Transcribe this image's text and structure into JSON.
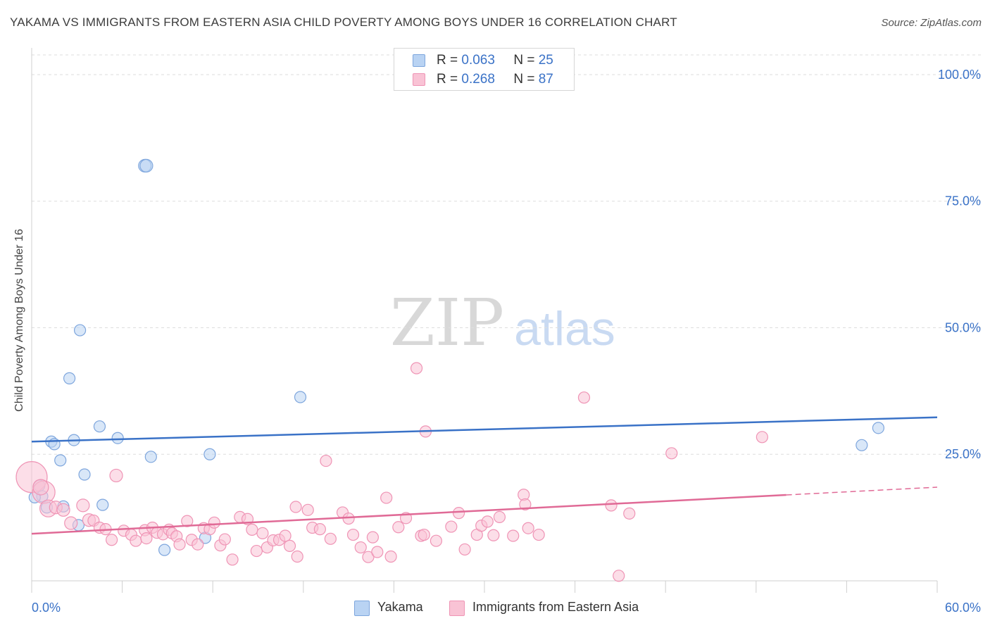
{
  "title": "YAKAMA VS IMMIGRANTS FROM EASTERN ASIA CHILD POVERTY AMONG BOYS UNDER 16 CORRELATION CHART",
  "source": "Source: ZipAtlas.com",
  "watermark": {
    "zip": "ZIP",
    "atlas": "atlas"
  },
  "colors": {
    "blue": "#3a72c7",
    "blue_fill": "#b9d3f3",
    "blue_stroke": "#7ea6dd",
    "pink": "#e06a96",
    "pink_fill": "#f9c3d5",
    "pink_stroke": "#ef94b5",
    "grid": "#dedede",
    "tick_text": "#3a72c7"
  },
  "legend": {
    "rows": [
      {
        "r_label": "R =",
        "r_value": "0.063",
        "n_label": "N =",
        "n_value": "25"
      },
      {
        "r_label": "R =",
        "r_value": "0.268",
        "n_label": "N =",
        "n_value": "87"
      }
    ]
  },
  "bottom_legend": {
    "yakama": "Yakama",
    "immigrants": "Immigrants from Eastern Asia"
  },
  "chart_data": {
    "type": "scatter",
    "title": "YAKAMA VS IMMIGRANTS FROM EASTERN ASIA CHILD POVERTY AMONG BOYS UNDER 16 CORRELATION CHART",
    "xlabel": "",
    "ylabel": "Child Poverty Among Boys Under 16",
    "xlim": [
      0,
      60
    ],
    "ylim": [
      0,
      105
    ],
    "x_tick_labels": [
      {
        "value": 0,
        "label": "0.0%"
      },
      {
        "value": 60,
        "label": "60.0%"
      }
    ],
    "y_tick_labels": [
      {
        "value": 25,
        "label": "25.0%"
      },
      {
        "value": 50,
        "label": "50.0%"
      },
      {
        "value": 75,
        "label": "75.0%"
      },
      {
        "value": 100,
        "label": "100.0%"
      }
    ],
    "series": [
      {
        "name": "Yakama",
        "color": "blue",
        "r": 0.063,
        "n": 25,
        "trend": {
          "x0": 0,
          "y0": 27.5,
          "x1": 60,
          "y1": 32.3
        },
        "points": [
          [
            7.5,
            82.0
          ],
          [
            7.6,
            82.0
          ],
          [
            3.2,
            49.5
          ],
          [
            2.5,
            40.0
          ],
          [
            17.8,
            36.3
          ],
          [
            4.5,
            30.5
          ],
          [
            5.7,
            28.2
          ],
          [
            2.8,
            27.8
          ],
          [
            1.3,
            27.5
          ],
          [
            1.5,
            27.0
          ],
          [
            11.8,
            25.0
          ],
          [
            7.9,
            24.5
          ],
          [
            1.9,
            23.8
          ],
          [
            3.5,
            21.0
          ],
          [
            0.5,
            18.8
          ],
          [
            0.7,
            16.7
          ],
          [
            0.2,
            16.5
          ],
          [
            2.1,
            14.7
          ],
          [
            4.7,
            15.0
          ],
          [
            1.0,
            14.5
          ],
          [
            3.1,
            11.0
          ],
          [
            11.5,
            8.5
          ],
          [
            8.8,
            6.1
          ],
          [
            55.0,
            26.8
          ],
          [
            56.1,
            30.2
          ]
        ],
        "sizes": [
          9,
          9,
          8,
          8,
          8,
          8,
          8,
          8,
          8,
          8,
          8,
          8,
          8,
          8,
          8,
          8,
          8,
          8,
          8,
          8,
          8,
          8,
          8,
          8,
          8
        ]
      },
      {
        "name": "Immigrants from Eastern Asia",
        "color": "pink",
        "r": 0.268,
        "n": 87,
        "trend": {
          "x0": 0,
          "y0": 9.3,
          "x1": 60,
          "y1": 18.5,
          "solid_until_x": 50
        },
        "points": [
          [
            0.0,
            20.5
          ],
          [
            0.8,
            17.5
          ],
          [
            0.6,
            18.5
          ],
          [
            1.1,
            14.3
          ],
          [
            1.6,
            14.5
          ],
          [
            2.1,
            14.0
          ],
          [
            2.6,
            11.4
          ],
          [
            3.4,
            14.9
          ],
          [
            3.8,
            12.0
          ],
          [
            4.1,
            11.9
          ],
          [
            4.5,
            10.5
          ],
          [
            4.9,
            10.2
          ],
          [
            5.3,
            8.1
          ],
          [
            5.6,
            20.8
          ],
          [
            6.1,
            9.9
          ],
          [
            6.6,
            9.1
          ],
          [
            6.9,
            7.9
          ],
          [
            7.5,
            10.0
          ],
          [
            7.6,
            8.4
          ],
          [
            8.0,
            10.5
          ],
          [
            8.3,
            9.5
          ],
          [
            8.7,
            9.2
          ],
          [
            9.1,
            10.1
          ],
          [
            9.3,
            9.4
          ],
          [
            9.6,
            8.8
          ],
          [
            9.8,
            7.2
          ],
          [
            10.3,
            11.8
          ],
          [
            10.6,
            8.1
          ],
          [
            11.0,
            7.2
          ],
          [
            11.4,
            10.4
          ],
          [
            11.8,
            10.2
          ],
          [
            12.1,
            11.5
          ],
          [
            12.5,
            7.0
          ],
          [
            12.8,
            8.2
          ],
          [
            13.3,
            4.2
          ],
          [
            13.8,
            12.6
          ],
          [
            14.3,
            12.2
          ],
          [
            14.6,
            10.1
          ],
          [
            14.9,
            5.9
          ],
          [
            15.3,
            9.4
          ],
          [
            15.6,
            6.6
          ],
          [
            16.0,
            8.0
          ],
          [
            16.4,
            8.1
          ],
          [
            16.8,
            8.9
          ],
          [
            17.1,
            6.9
          ],
          [
            17.5,
            14.6
          ],
          [
            17.6,
            4.8
          ],
          [
            18.3,
            14.0
          ],
          [
            18.6,
            10.5
          ],
          [
            19.1,
            10.2
          ],
          [
            19.5,
            23.7
          ],
          [
            19.8,
            8.3
          ],
          [
            20.6,
            13.5
          ],
          [
            21.0,
            12.3
          ],
          [
            21.3,
            9.1
          ],
          [
            21.8,
            6.6
          ],
          [
            22.3,
            4.7
          ],
          [
            22.6,
            8.6
          ],
          [
            22.9,
            5.7
          ],
          [
            23.5,
            16.4
          ],
          [
            23.8,
            4.8
          ],
          [
            24.3,
            10.6
          ],
          [
            24.8,
            12.4
          ],
          [
            25.8,
            8.9
          ],
          [
            26.0,
            9.1
          ],
          [
            26.8,
            7.9
          ],
          [
            25.5,
            42.0
          ],
          [
            26.1,
            29.5
          ],
          [
            27.8,
            10.7
          ],
          [
            28.3,
            13.4
          ],
          [
            28.7,
            6.2
          ],
          [
            29.5,
            9.1
          ],
          [
            29.8,
            10.9
          ],
          [
            30.2,
            11.7
          ],
          [
            30.6,
            9.0
          ],
          [
            31.0,
            12.6
          ],
          [
            31.9,
            8.9
          ],
          [
            32.6,
            17.0
          ],
          [
            32.7,
            15.1
          ],
          [
            32.9,
            10.4
          ],
          [
            33.6,
            9.1
          ],
          [
            36.6,
            36.2
          ],
          [
            38.4,
            14.9
          ],
          [
            38.9,
            1.0
          ],
          [
            39.6,
            13.3
          ],
          [
            42.4,
            25.2
          ],
          [
            48.4,
            28.4
          ]
        ],
        "sizes": [
          22,
          16,
          11,
          12,
          9,
          9,
          9,
          9,
          9,
          8,
          8,
          8,
          8,
          9,
          8,
          8,
          8,
          8,
          8,
          8,
          8,
          8,
          8,
          8,
          8,
          8,
          8,
          8,
          8,
          8,
          8,
          8,
          8,
          8,
          8,
          8,
          8,
          8,
          8,
          8,
          8,
          8,
          8,
          8,
          8,
          8,
          8,
          8,
          8,
          8,
          8,
          8,
          8,
          8,
          8,
          8,
          8,
          8,
          8,
          8,
          8,
          8,
          8,
          8,
          8,
          8,
          8,
          8,
          8,
          8,
          8,
          8,
          8,
          8,
          8,
          8,
          8,
          8,
          8,
          8,
          8,
          8,
          8,
          8,
          8,
          8,
          8
        ]
      }
    ]
  }
}
